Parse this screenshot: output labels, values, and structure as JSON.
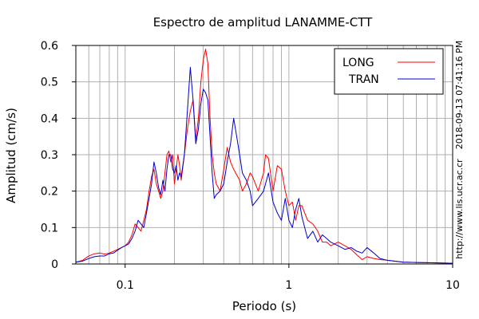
{
  "chart_data": {
    "type": "line",
    "title": "Espectro de amplitud LANAMME-CTT",
    "xlabel": "Periodo (s)",
    "ylabel": "Amplitud (cm/s)",
    "x_scale": "log",
    "xlim": [
      0.05,
      10
    ],
    "ylim": [
      0,
      0.6
    ],
    "grid": true,
    "legend_position": "top-right",
    "x_ticks": [
      {
        "value": 0.1,
        "label": "0.1"
      },
      {
        "value": 1,
        "label": "1"
      },
      {
        "value": 10,
        "label": "10"
      }
    ],
    "y_ticks": [
      {
        "value": 0,
        "label": "0"
      },
      {
        "value": 0.1,
        "label": "0.1"
      },
      {
        "value": 0.2,
        "label": "0.2"
      },
      {
        "value": 0.3,
        "label": "0.3"
      },
      {
        "value": 0.4,
        "label": "0.4"
      },
      {
        "value": 0.5,
        "label": "0.5"
      },
      {
        "value": 0.6,
        "label": "0.6"
      }
    ],
    "side_labels": {
      "timestamp": "2018-09-13 07:41:16 PM",
      "url": "http://www.lis.ucr.ac.cr"
    },
    "series": [
      {
        "name": "LONG",
        "color": "#ff0000",
        "points": [
          [
            0.05,
            0.005
          ],
          [
            0.055,
            0.01
          ],
          [
            0.06,
            0.022
          ],
          [
            0.065,
            0.028
          ],
          [
            0.07,
            0.03
          ],
          [
            0.075,
            0.027
          ],
          [
            0.08,
            0.03
          ],
          [
            0.085,
            0.035
          ],
          [
            0.09,
            0.04
          ],
          [
            0.095,
            0.045
          ],
          [
            0.1,
            0.05
          ],
          [
            0.105,
            0.06
          ],
          [
            0.11,
            0.08
          ],
          [
            0.115,
            0.11
          ],
          [
            0.12,
            0.1
          ],
          [
            0.125,
            0.09
          ],
          [
            0.13,
            0.12
          ],
          [
            0.135,
            0.15
          ],
          [
            0.14,
            0.2
          ],
          [
            0.145,
            0.24
          ],
          [
            0.15,
            0.26
          ],
          [
            0.155,
            0.22
          ],
          [
            0.16,
            0.2
          ],
          [
            0.165,
            0.18
          ],
          [
            0.17,
            0.2
          ],
          [
            0.175,
            0.25
          ],
          [
            0.18,
            0.3
          ],
          [
            0.185,
            0.31
          ],
          [
            0.19,
            0.28
          ],
          [
            0.195,
            0.3
          ],
          [
            0.2,
            0.22
          ],
          [
            0.205,
            0.26
          ],
          [
            0.21,
            0.3
          ],
          [
            0.215,
            0.27
          ],
          [
            0.22,
            0.23
          ],
          [
            0.23,
            0.3
          ],
          [
            0.24,
            0.37
          ],
          [
            0.25,
            0.42
          ],
          [
            0.26,
            0.45
          ],
          [
            0.27,
            0.34
          ],
          [
            0.28,
            0.4
          ],
          [
            0.29,
            0.5
          ],
          [
            0.3,
            0.56
          ],
          [
            0.31,
            0.59
          ],
          [
            0.32,
            0.55
          ],
          [
            0.33,
            0.4
          ],
          [
            0.34,
            0.3
          ],
          [
            0.35,
            0.25
          ],
          [
            0.36,
            0.22
          ],
          [
            0.38,
            0.2
          ],
          [
            0.4,
            0.26
          ],
          [
            0.42,
            0.32
          ],
          [
            0.44,
            0.28
          ],
          [
            0.46,
            0.26
          ],
          [
            0.5,
            0.23
          ],
          [
            0.52,
            0.2
          ],
          [
            0.55,
            0.22
          ],
          [
            0.58,
            0.25
          ],
          [
            0.6,
            0.24
          ],
          [
            0.65,
            0.2
          ],
          [
            0.7,
            0.25
          ],
          [
            0.72,
            0.3
          ],
          [
            0.75,
            0.29
          ],
          [
            0.8,
            0.2
          ],
          [
            0.85,
            0.27
          ],
          [
            0.9,
            0.26
          ],
          [
            0.95,
            0.2
          ],
          [
            1.0,
            0.16
          ],
          [
            1.05,
            0.17
          ],
          [
            1.1,
            0.12
          ],
          [
            1.15,
            0.16
          ],
          [
            1.2,
            0.16
          ],
          [
            1.3,
            0.12
          ],
          [
            1.4,
            0.11
          ],
          [
            1.5,
            0.09
          ],
          [
            1.6,
            0.06
          ],
          [
            1.7,
            0.06
          ],
          [
            1.8,
            0.05
          ],
          [
            2.0,
            0.06
          ],
          [
            2.2,
            0.05
          ],
          [
            2.4,
            0.04
          ],
          [
            2.6,
            0.025
          ],
          [
            2.8,
            0.012
          ],
          [
            3.0,
            0.02
          ],
          [
            3.3,
            0.015
          ],
          [
            3.6,
            0.012
          ],
          [
            4.0,
            0.01
          ],
          [
            5.0,
            0.005
          ],
          [
            6.0,
            0.004
          ],
          [
            8.0,
            0.003
          ],
          [
            10.0,
            0.002
          ]
        ]
      },
      {
        "name": "TRAN",
        "color": "#0000cc",
        "points": [
          [
            0.05,
            0.005
          ],
          [
            0.055,
            0.008
          ],
          [
            0.06,
            0.015
          ],
          [
            0.065,
            0.02
          ],
          [
            0.07,
            0.022
          ],
          [
            0.075,
            0.022
          ],
          [
            0.08,
            0.028
          ],
          [
            0.085,
            0.03
          ],
          [
            0.09,
            0.038
          ],
          [
            0.095,
            0.045
          ],
          [
            0.1,
            0.05
          ],
          [
            0.105,
            0.055
          ],
          [
            0.11,
            0.07
          ],
          [
            0.115,
            0.09
          ],
          [
            0.12,
            0.12
          ],
          [
            0.125,
            0.11
          ],
          [
            0.13,
            0.1
          ],
          [
            0.135,
            0.14
          ],
          [
            0.14,
            0.18
          ],
          [
            0.145,
            0.22
          ],
          [
            0.15,
            0.28
          ],
          [
            0.155,
            0.25
          ],
          [
            0.16,
            0.21
          ],
          [
            0.165,
            0.19
          ],
          [
            0.17,
            0.23
          ],
          [
            0.175,
            0.2
          ],
          [
            0.18,
            0.26
          ],
          [
            0.185,
            0.3
          ],
          [
            0.19,
            0.3
          ],
          [
            0.195,
            0.26
          ],
          [
            0.2,
            0.25
          ],
          [
            0.205,
            0.27
          ],
          [
            0.21,
            0.23
          ],
          [
            0.215,
            0.25
          ],
          [
            0.22,
            0.24
          ],
          [
            0.23,
            0.3
          ],
          [
            0.24,
            0.42
          ],
          [
            0.25,
            0.54
          ],
          [
            0.26,
            0.45
          ],
          [
            0.27,
            0.33
          ],
          [
            0.28,
            0.37
          ],
          [
            0.29,
            0.44
          ],
          [
            0.3,
            0.48
          ],
          [
            0.31,
            0.47
          ],
          [
            0.32,
            0.45
          ],
          [
            0.33,
            0.35
          ],
          [
            0.34,
            0.25
          ],
          [
            0.35,
            0.18
          ],
          [
            0.36,
            0.19
          ],
          [
            0.38,
            0.2
          ],
          [
            0.4,
            0.22
          ],
          [
            0.42,
            0.28
          ],
          [
            0.44,
            0.33
          ],
          [
            0.46,
            0.4
          ],
          [
            0.48,
            0.35
          ],
          [
            0.5,
            0.3
          ],
          [
            0.52,
            0.25
          ],
          [
            0.55,
            0.23
          ],
          [
            0.58,
            0.2
          ],
          [
            0.6,
            0.16
          ],
          [
            0.65,
            0.18
          ],
          [
            0.7,
            0.2
          ],
          [
            0.72,
            0.22
          ],
          [
            0.75,
            0.25
          ],
          [
            0.8,
            0.17
          ],
          [
            0.85,
            0.14
          ],
          [
            0.9,
            0.12
          ],
          [
            0.95,
            0.18
          ],
          [
            1.0,
            0.12
          ],
          [
            1.05,
            0.1
          ],
          [
            1.1,
            0.15
          ],
          [
            1.15,
            0.18
          ],
          [
            1.2,
            0.13
          ],
          [
            1.3,
            0.07
          ],
          [
            1.4,
            0.09
          ],
          [
            1.5,
            0.06
          ],
          [
            1.6,
            0.08
          ],
          [
            1.7,
            0.07
          ],
          [
            1.8,
            0.06
          ],
          [
            2.0,
            0.05
          ],
          [
            2.2,
            0.04
          ],
          [
            2.4,
            0.045
          ],
          [
            2.6,
            0.035
          ],
          [
            2.8,
            0.03
          ],
          [
            3.0,
            0.045
          ],
          [
            3.3,
            0.03
          ],
          [
            3.6,
            0.015
          ],
          [
            4.0,
            0.01
          ],
          [
            5.0,
            0.005
          ],
          [
            6.0,
            0.004
          ],
          [
            8.0,
            0.003
          ],
          [
            10.0,
            0.002
          ]
        ]
      }
    ]
  }
}
